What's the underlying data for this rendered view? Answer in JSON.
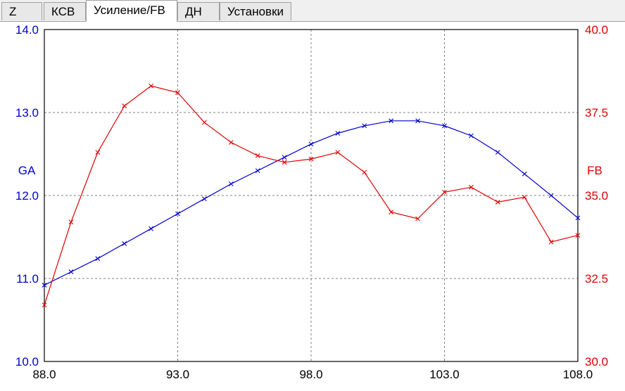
{
  "tabs": [
    {
      "label": "Z",
      "active": false
    },
    {
      "label": "КСВ",
      "active": false
    },
    {
      "label": "Усиление/FB",
      "active": true
    },
    {
      "label": "ДН",
      "active": false
    },
    {
      "label": "Установки",
      "active": false
    }
  ],
  "colors": {
    "ga": "#0000cc",
    "fb": "#dd0000",
    "axis_left_text": "#0000cc",
    "axis_right_text": "#dd0000",
    "grid": "#808080"
  },
  "chart_data": {
    "type": "line",
    "grid": true,
    "x_ticks": [
      "88.0",
      "93.0",
      "98.0",
      "103.0",
      "108.0"
    ],
    "xlim": [
      88,
      108
    ],
    "y_left": {
      "label": "GA",
      "ticks": [
        "10.0",
        "11.0",
        "12.0",
        "13.0",
        "14.0"
      ],
      "lim": [
        10,
        14
      ]
    },
    "y_right": {
      "label": "FB",
      "ticks": [
        "30.0",
        "32.5",
        "35.0",
        "37.5",
        "40.0"
      ],
      "lim": [
        30,
        40
      ]
    },
    "x": [
      88,
      89,
      90,
      91,
      92,
      93,
      94,
      95,
      96,
      97,
      98,
      99,
      100,
      101,
      102,
      103,
      104,
      105,
      106,
      107,
      108
    ],
    "series": [
      {
        "name": "GA",
        "axis": "left",
        "marker": "x",
        "values": [
          10.92,
          11.08,
          11.24,
          11.42,
          11.6,
          11.78,
          11.96,
          12.14,
          12.3,
          12.46,
          12.62,
          12.75,
          12.84,
          12.9,
          12.9,
          12.84,
          12.72,
          12.52,
          12.26,
          12.0,
          11.73
        ]
      },
      {
        "name": "FB",
        "axis": "right",
        "marker": "x",
        "values": [
          31.7,
          34.2,
          36.3,
          37.7,
          38.3,
          38.1,
          37.2,
          36.6,
          36.2,
          36.0,
          36.1,
          36.3,
          35.7,
          34.5,
          34.3,
          35.1,
          35.25,
          34.8,
          34.95,
          33.6,
          33.8
        ]
      }
    ]
  }
}
